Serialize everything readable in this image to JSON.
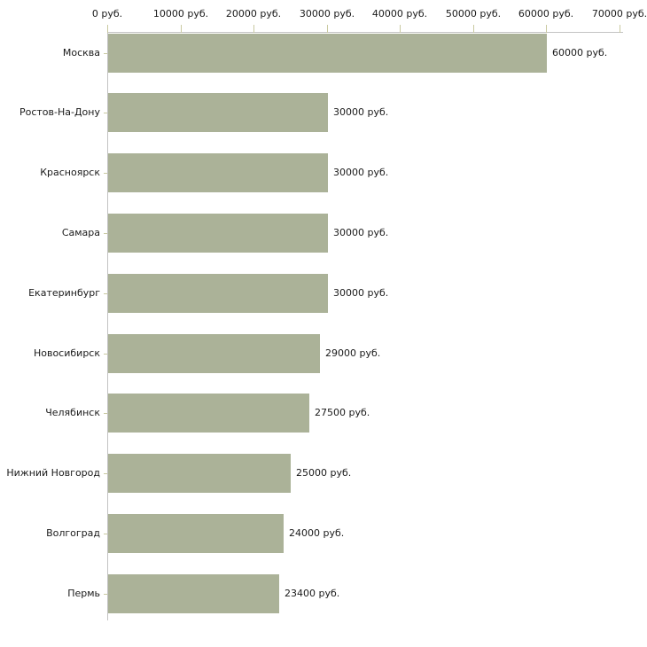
{
  "chart_data": {
    "type": "bar",
    "orientation": "horizontal",
    "title": "",
    "unit": "руб.",
    "categories": [
      "Москва",
      "Ростов-На-Дону",
      "Красноярск",
      "Самара",
      "Екатеринбург",
      "Новосибирск",
      "Челябинск",
      "Нижний Новгород",
      "Волгоград",
      "Пермь"
    ],
    "values": [
      60000,
      30000,
      30000,
      30000,
      30000,
      29000,
      27500,
      25000,
      24000,
      23400
    ],
    "value_labels": [
      "60000 руб.",
      "30000 руб.",
      "30000 руб.",
      "30000 руб.",
      "30000 руб.",
      "29000 руб.",
      "27500 руб.",
      "25000 руб.",
      "24000 руб.",
      "23400 руб."
    ],
    "x_ticks": [
      0,
      10000,
      20000,
      30000,
      40000,
      50000,
      60000,
      70000
    ],
    "x_tick_labels": [
      "0 руб.",
      "10000 руб.",
      "20000 руб.",
      "30000 руб.",
      "40000 руб.",
      "50000 руб.",
      "60000 руб.",
      "70000 руб."
    ],
    "xlim": [
      0,
      70000
    ],
    "axis_position": "top",
    "grid": false,
    "legend": false,
    "colors": {
      "bar": "#abb298",
      "axis_line": "#c3c3c3",
      "tick": "#c9c9a0",
      "text": "#1a1a1a",
      "background": "#ffffff"
    }
  }
}
